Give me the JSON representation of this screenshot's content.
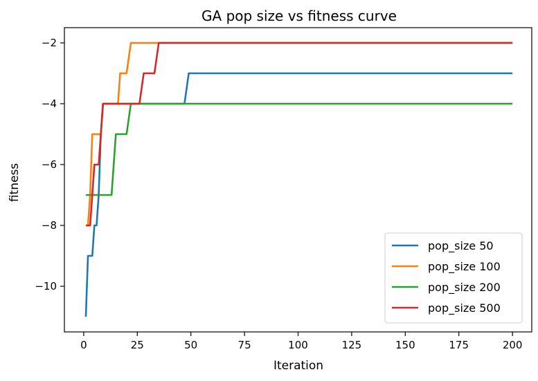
{
  "chart_data": {
    "type": "line",
    "title": "GA pop size vs fitness curve",
    "xlabel": "Iteration",
    "ylabel": "fitness",
    "xlim": [
      -9,
      209
    ],
    "ylim": [
      -11.5,
      -1.5
    ],
    "xticks": [
      0,
      25,
      50,
      75,
      100,
      125,
      150,
      175,
      200
    ],
    "yticks": [
      -10,
      -8,
      -6,
      -4,
      -2
    ],
    "ytick_labels": [
      "−10",
      "−8",
      "−6",
      "−4",
      "−2"
    ],
    "grid": false,
    "legend_position": "lower-right",
    "series": [
      {
        "name": "pop_size 50",
        "color": "#1f77b4",
        "x": [
          1,
          2,
          3,
          4,
          5,
          6,
          7,
          8,
          9,
          47,
          48,
          49,
          200
        ],
        "y": [
          -11,
          -9,
          -9,
          -9,
          -8,
          -8,
          -7,
          -5,
          -4,
          -4,
          -3.5,
          -3,
          -3
        ]
      },
      {
        "name": "pop_size 100",
        "color": "#ff7f0e",
        "x": [
          1,
          2,
          3,
          4,
          5,
          6,
          7,
          8,
          9,
          16,
          17,
          18,
          19,
          20,
          21,
          22,
          200
        ],
        "y": [
          -8,
          -8,
          -7,
          -5,
          -5,
          -5,
          -5,
          -5,
          -4,
          -4,
          -3,
          -3,
          -3,
          -3,
          -2.5,
          -2,
          -2
        ]
      },
      {
        "name": "pop_size 200",
        "color": "#2ca02c",
        "x": [
          1,
          13,
          14,
          15,
          20,
          21,
          22,
          200
        ],
        "y": [
          -7,
          -7,
          -6,
          -5,
          -5,
          -4.5,
          -4,
          -4
        ]
      },
      {
        "name": "pop_size 500",
        "color": "#d62728",
        "x": [
          1,
          3,
          4,
          5,
          7,
          8,
          9,
          26,
          27,
          28,
          33,
          34,
          35,
          200
        ],
        "y": [
          -8,
          -8,
          -7,
          -6,
          -6,
          -5,
          -4,
          -4,
          -3.5,
          -3,
          -3,
          -2.5,
          -2,
          -2
        ]
      }
    ]
  }
}
